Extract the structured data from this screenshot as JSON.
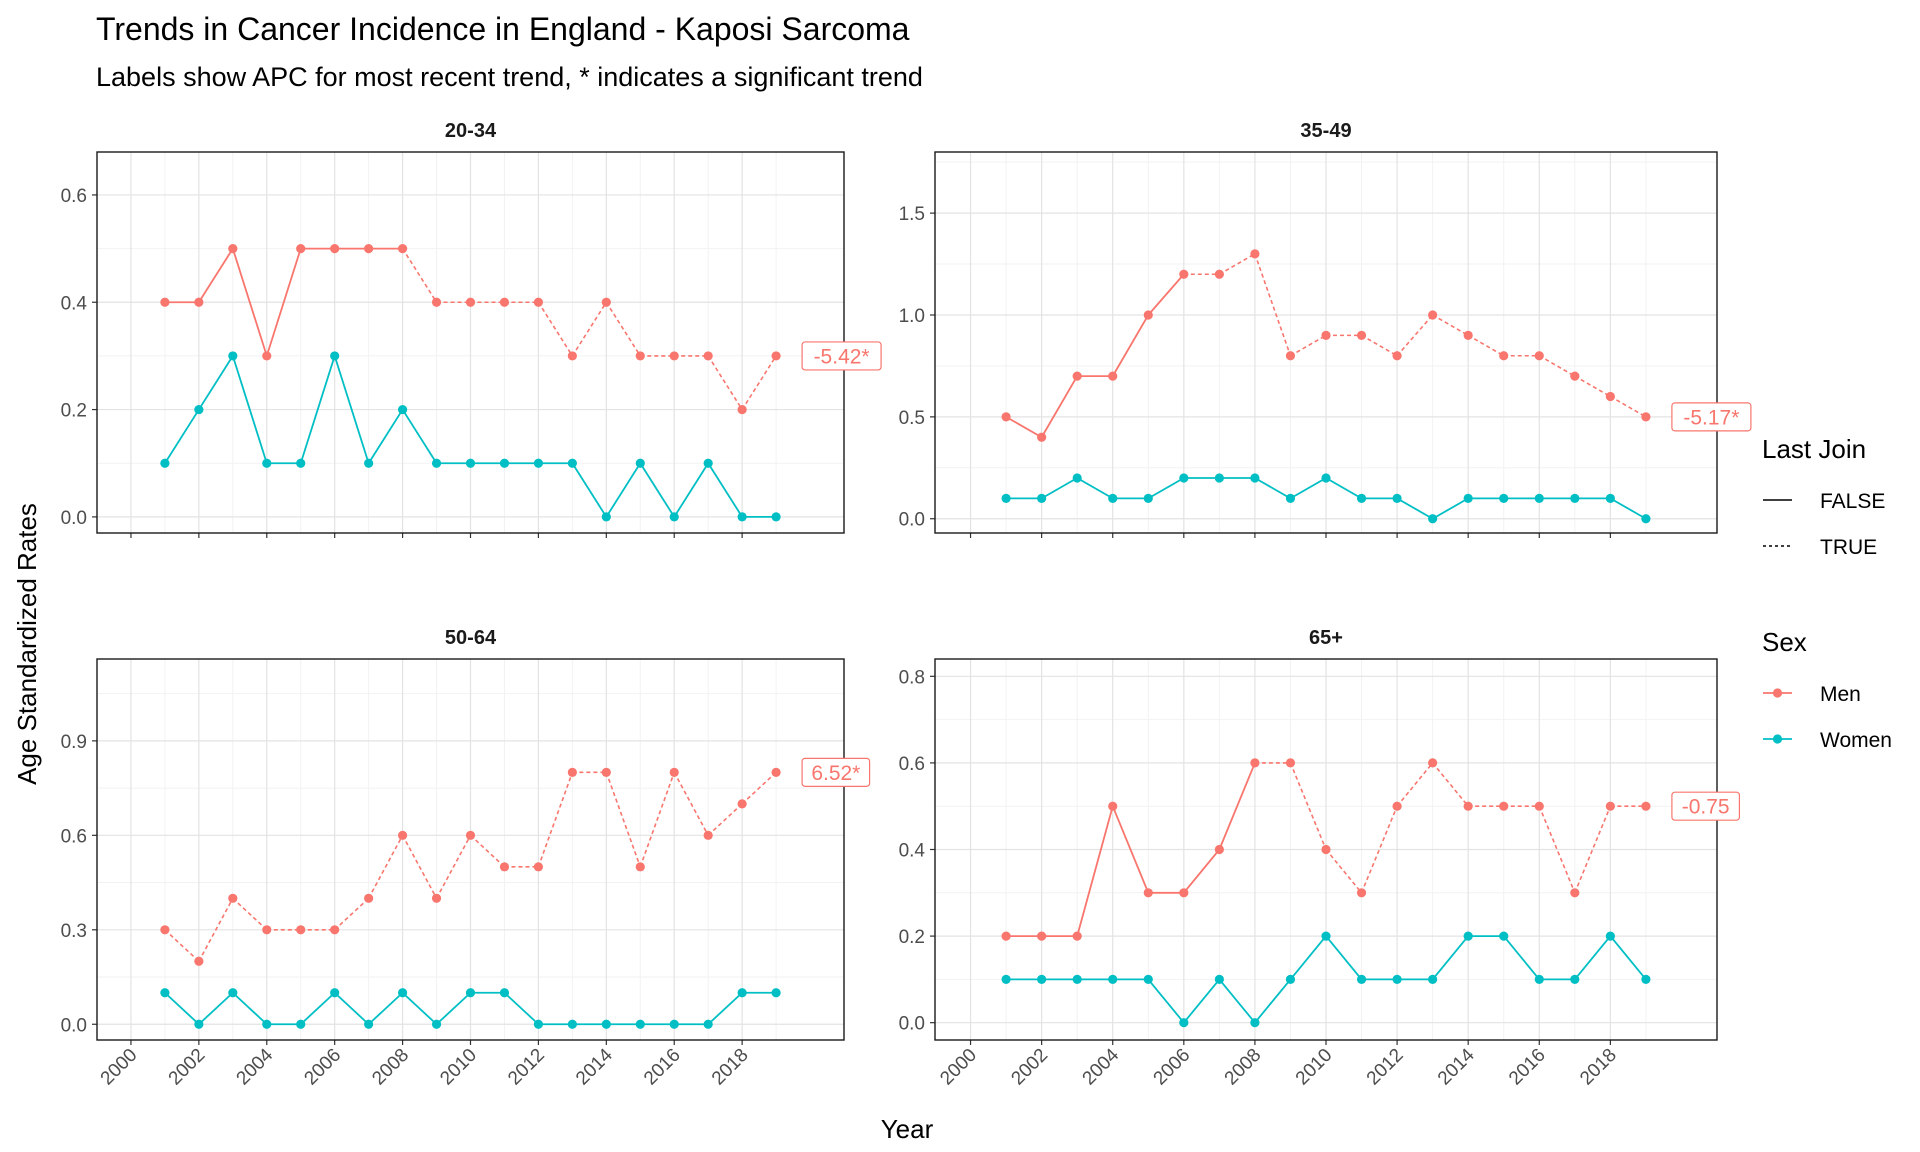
{
  "chart_data": {
    "type": "line",
    "title": "Trends in Cancer Incidence in England - Kaposi Sarcoma",
    "subtitle": "Labels show APC for most recent trend, * indicates a significant trend",
    "xlabel": "Year",
    "ylabel": "Age Standardized Rates",
    "x_ticks": [
      2000,
      2002,
      2004,
      2006,
      2008,
      2010,
      2012,
      2014,
      2016,
      2018
    ],
    "x_range": [
      1999,
      2021
    ],
    "years": [
      2001,
      2002,
      2003,
      2004,
      2005,
      2006,
      2007,
      2008,
      2009,
      2010,
      2011,
      2012,
      2013,
      2014,
      2015,
      2016,
      2017,
      2018,
      2019
    ],
    "colors": {
      "Men": "#F8766D",
      "Women": "#00BFC4"
    },
    "legend": {
      "last_join_title": "Last Join",
      "last_join_items": [
        {
          "label": "FALSE",
          "dash": "solid"
        },
        {
          "label": "TRUE",
          "dash": "dotted"
        }
      ],
      "sex_title": "Sex",
      "sex_items": [
        {
          "label": "Men",
          "color": "#F8766D"
        },
        {
          "label": "Women",
          "color": "#00BFC4"
        }
      ]
    },
    "panels": [
      {
        "label": "20-34",
        "y_range": [
          -0.03,
          0.68
        ],
        "y_ticks": [
          0.0,
          0.2,
          0.4,
          0.6
        ],
        "y_tick_labels": [
          "0.0",
          "0.2",
          "0.4",
          "0.6"
        ],
        "apc_label": "-5.42*",
        "apc_value": 0.3,
        "series": [
          {
            "name": "Men",
            "values": [
              0.4,
              0.4,
              0.5,
              0.3,
              0.5,
              0.5,
              0.5,
              0.5,
              0.4,
              0.4,
              0.4,
              0.4,
              0.3,
              0.4,
              0.3,
              0.3,
              0.3,
              0.2,
              0.3
            ],
            "dotted_from_year": 2008
          },
          {
            "name": "Women",
            "values": [
              0.1,
              0.2,
              0.3,
              0.1,
              0.1,
              0.3,
              0.1,
              0.2,
              0.1,
              0.1,
              0.1,
              0.1,
              0.1,
              0.0,
              0.1,
              0.0,
              0.1,
              0.0,
              0.0
            ],
            "dotted_from_year": null
          }
        ]
      },
      {
        "label": "35-49",
        "y_range": [
          -0.07,
          1.8
        ],
        "y_ticks": [
          0.0,
          0.5,
          1.0,
          1.5
        ],
        "y_tick_labels": [
          "0.0",
          "0.5",
          "1.0",
          "1.5"
        ],
        "apc_label": "-5.17*",
        "apc_value": 0.5,
        "series": [
          {
            "name": "Men",
            "values": [
              0.5,
              0.4,
              0.7,
              0.7,
              1.0,
              1.2,
              1.2,
              1.3,
              0.8,
              0.9,
              0.9,
              0.8,
              1.0,
              0.9,
              0.8,
              0.8,
              0.7,
              0.6,
              0.5
            ],
            "dotted_from_year": 2006
          },
          {
            "name": "Women",
            "values": [
              0.1,
              0.1,
              0.2,
              0.1,
              0.1,
              0.2,
              0.2,
              0.2,
              0.1,
              0.2,
              0.1,
              0.1,
              0.0,
              0.1,
              0.1,
              0.1,
              0.1,
              0.1,
              0.0
            ],
            "dotted_from_year": null
          }
        ]
      },
      {
        "label": "50-64",
        "y_range": [
          -0.05,
          1.16
        ],
        "y_ticks": [
          0.0,
          0.3,
          0.6,
          0.9
        ],
        "y_tick_labels": [
          "0.0",
          "0.3",
          "0.6",
          "0.9"
        ],
        "apc_label": "6.52*",
        "apc_value": 0.8,
        "series": [
          {
            "name": "Men",
            "values": [
              0.3,
              0.2,
              0.4,
              0.3,
              0.3,
              0.3,
              0.4,
              0.6,
              0.4,
              0.6,
              0.5,
              0.5,
              0.8,
              0.8,
              0.5,
              0.8,
              0.6,
              0.7,
              0.8
            ],
            "dotted_from_year": 2001
          },
          {
            "name": "Women",
            "values": [
              0.1,
              0.0,
              0.1,
              0.0,
              0.0,
              0.1,
              0.0,
              0.1,
              0.0,
              0.1,
              0.1,
              0.0,
              0.0,
              0.0,
              0.0,
              0.0,
              0.0,
              0.1,
              0.1
            ],
            "dotted_from_year": null
          }
        ]
      },
      {
        "label": "65+",
        "y_range": [
          -0.04,
          0.84
        ],
        "y_ticks": [
          0.0,
          0.2,
          0.4,
          0.6,
          0.8
        ],
        "y_tick_labels": [
          "0.0",
          "0.2",
          "0.4",
          "0.6",
          "0.8"
        ],
        "apc_label": "-0.75",
        "apc_value": 0.5,
        "series": [
          {
            "name": "Men",
            "values": [
              0.2,
              0.2,
              0.2,
              0.5,
              0.3,
              0.3,
              0.4,
              0.6,
              0.6,
              0.4,
              0.3,
              0.5,
              0.6,
              0.5,
              0.5,
              0.5,
              0.3,
              0.5,
              0.5
            ],
            "dotted_from_year": 2008
          },
          {
            "name": "Women",
            "values": [
              0.1,
              0.1,
              0.1,
              0.1,
              0.1,
              0.0,
              0.1,
              0.0,
              0.1,
              0.2,
              0.1,
              0.1,
              0.1,
              0.2,
              0.2,
              0.1,
              0.1,
              0.2,
              0.1
            ],
            "dotted_from_year": null
          }
        ]
      }
    ]
  }
}
